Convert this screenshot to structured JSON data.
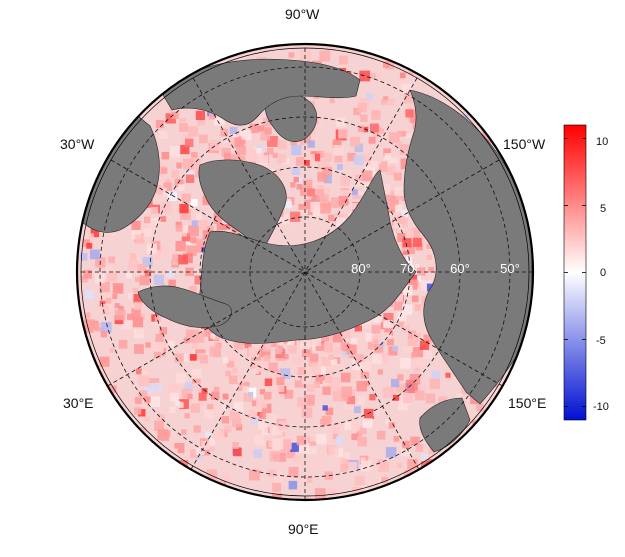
{
  "map": {
    "longitude_labels": {
      "top": "90°W",
      "upper_left": "30°W",
      "upper_right": "150°W",
      "lower_left": "30°E",
      "lower_right": "150°E",
      "bottom": "90°E"
    },
    "latitude_labels": [
      "80°",
      "70°",
      "60°",
      "50°"
    ],
    "land_color": "#7a7a7a",
    "projection": "north-polar-stereographic"
  },
  "colorbar": {
    "min": -11,
    "max": 11,
    "ticks": [
      "10",
      "5",
      "0",
      "-5",
      "-10"
    ],
    "colors": {
      "low": "#0010d0",
      "mid": "#ffffff",
      "high": "#ff0000"
    }
  }
}
